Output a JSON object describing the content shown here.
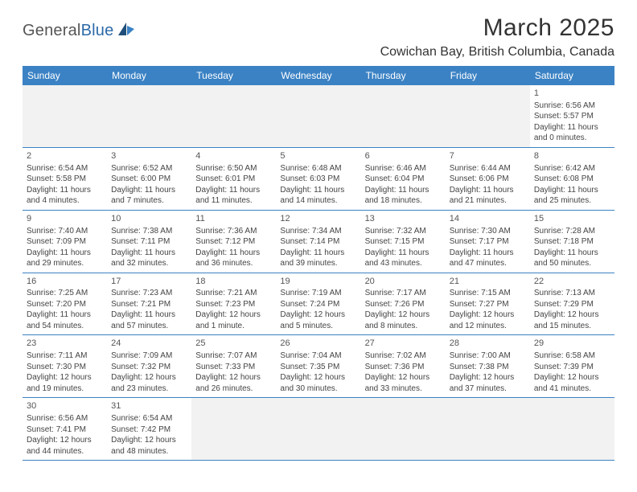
{
  "logo": {
    "general": "General",
    "blue": "Blue"
  },
  "title": "March 2025",
  "location": "Cowichan Bay, British Columbia, Canada",
  "colors": {
    "header_bg": "#3b82c4",
    "header_text": "#ffffff",
    "border": "#3b82c4",
    "empty_bg": "#f2f2f2",
    "text": "#444444",
    "logo_blue": "#2c6aa8"
  },
  "day_headers": [
    "Sunday",
    "Monday",
    "Tuesday",
    "Wednesday",
    "Thursday",
    "Friday",
    "Saturday"
  ],
  "weeks": [
    [
      {
        "empty": true
      },
      {
        "empty": true
      },
      {
        "empty": true
      },
      {
        "empty": true
      },
      {
        "empty": true
      },
      {
        "empty": true
      },
      {
        "day": "1",
        "sunrise": "Sunrise: 6:56 AM",
        "sunset": "Sunset: 5:57 PM",
        "daylight1": "Daylight: 11 hours",
        "daylight2": "and 0 minutes."
      }
    ],
    [
      {
        "day": "2",
        "sunrise": "Sunrise: 6:54 AM",
        "sunset": "Sunset: 5:58 PM",
        "daylight1": "Daylight: 11 hours",
        "daylight2": "and 4 minutes."
      },
      {
        "day": "3",
        "sunrise": "Sunrise: 6:52 AM",
        "sunset": "Sunset: 6:00 PM",
        "daylight1": "Daylight: 11 hours",
        "daylight2": "and 7 minutes."
      },
      {
        "day": "4",
        "sunrise": "Sunrise: 6:50 AM",
        "sunset": "Sunset: 6:01 PM",
        "daylight1": "Daylight: 11 hours",
        "daylight2": "and 11 minutes."
      },
      {
        "day": "5",
        "sunrise": "Sunrise: 6:48 AM",
        "sunset": "Sunset: 6:03 PM",
        "daylight1": "Daylight: 11 hours",
        "daylight2": "and 14 minutes."
      },
      {
        "day": "6",
        "sunrise": "Sunrise: 6:46 AM",
        "sunset": "Sunset: 6:04 PM",
        "daylight1": "Daylight: 11 hours",
        "daylight2": "and 18 minutes."
      },
      {
        "day": "7",
        "sunrise": "Sunrise: 6:44 AM",
        "sunset": "Sunset: 6:06 PM",
        "daylight1": "Daylight: 11 hours",
        "daylight2": "and 21 minutes."
      },
      {
        "day": "8",
        "sunrise": "Sunrise: 6:42 AM",
        "sunset": "Sunset: 6:08 PM",
        "daylight1": "Daylight: 11 hours",
        "daylight2": "and 25 minutes."
      }
    ],
    [
      {
        "day": "9",
        "sunrise": "Sunrise: 7:40 AM",
        "sunset": "Sunset: 7:09 PM",
        "daylight1": "Daylight: 11 hours",
        "daylight2": "and 29 minutes."
      },
      {
        "day": "10",
        "sunrise": "Sunrise: 7:38 AM",
        "sunset": "Sunset: 7:11 PM",
        "daylight1": "Daylight: 11 hours",
        "daylight2": "and 32 minutes."
      },
      {
        "day": "11",
        "sunrise": "Sunrise: 7:36 AM",
        "sunset": "Sunset: 7:12 PM",
        "daylight1": "Daylight: 11 hours",
        "daylight2": "and 36 minutes."
      },
      {
        "day": "12",
        "sunrise": "Sunrise: 7:34 AM",
        "sunset": "Sunset: 7:14 PM",
        "daylight1": "Daylight: 11 hours",
        "daylight2": "and 39 minutes."
      },
      {
        "day": "13",
        "sunrise": "Sunrise: 7:32 AM",
        "sunset": "Sunset: 7:15 PM",
        "daylight1": "Daylight: 11 hours",
        "daylight2": "and 43 minutes."
      },
      {
        "day": "14",
        "sunrise": "Sunrise: 7:30 AM",
        "sunset": "Sunset: 7:17 PM",
        "daylight1": "Daylight: 11 hours",
        "daylight2": "and 47 minutes."
      },
      {
        "day": "15",
        "sunrise": "Sunrise: 7:28 AM",
        "sunset": "Sunset: 7:18 PM",
        "daylight1": "Daylight: 11 hours",
        "daylight2": "and 50 minutes."
      }
    ],
    [
      {
        "day": "16",
        "sunrise": "Sunrise: 7:25 AM",
        "sunset": "Sunset: 7:20 PM",
        "daylight1": "Daylight: 11 hours",
        "daylight2": "and 54 minutes."
      },
      {
        "day": "17",
        "sunrise": "Sunrise: 7:23 AM",
        "sunset": "Sunset: 7:21 PM",
        "daylight1": "Daylight: 11 hours",
        "daylight2": "and 57 minutes."
      },
      {
        "day": "18",
        "sunrise": "Sunrise: 7:21 AM",
        "sunset": "Sunset: 7:23 PM",
        "daylight1": "Daylight: 12 hours",
        "daylight2": "and 1 minute."
      },
      {
        "day": "19",
        "sunrise": "Sunrise: 7:19 AM",
        "sunset": "Sunset: 7:24 PM",
        "daylight1": "Daylight: 12 hours",
        "daylight2": "and 5 minutes."
      },
      {
        "day": "20",
        "sunrise": "Sunrise: 7:17 AM",
        "sunset": "Sunset: 7:26 PM",
        "daylight1": "Daylight: 12 hours",
        "daylight2": "and 8 minutes."
      },
      {
        "day": "21",
        "sunrise": "Sunrise: 7:15 AM",
        "sunset": "Sunset: 7:27 PM",
        "daylight1": "Daylight: 12 hours",
        "daylight2": "and 12 minutes."
      },
      {
        "day": "22",
        "sunrise": "Sunrise: 7:13 AM",
        "sunset": "Sunset: 7:29 PM",
        "daylight1": "Daylight: 12 hours",
        "daylight2": "and 15 minutes."
      }
    ],
    [
      {
        "day": "23",
        "sunrise": "Sunrise: 7:11 AM",
        "sunset": "Sunset: 7:30 PM",
        "daylight1": "Daylight: 12 hours",
        "daylight2": "and 19 minutes."
      },
      {
        "day": "24",
        "sunrise": "Sunrise: 7:09 AM",
        "sunset": "Sunset: 7:32 PM",
        "daylight1": "Daylight: 12 hours",
        "daylight2": "and 23 minutes."
      },
      {
        "day": "25",
        "sunrise": "Sunrise: 7:07 AM",
        "sunset": "Sunset: 7:33 PM",
        "daylight1": "Daylight: 12 hours",
        "daylight2": "and 26 minutes."
      },
      {
        "day": "26",
        "sunrise": "Sunrise: 7:04 AM",
        "sunset": "Sunset: 7:35 PM",
        "daylight1": "Daylight: 12 hours",
        "daylight2": "and 30 minutes."
      },
      {
        "day": "27",
        "sunrise": "Sunrise: 7:02 AM",
        "sunset": "Sunset: 7:36 PM",
        "daylight1": "Daylight: 12 hours",
        "daylight2": "and 33 minutes."
      },
      {
        "day": "28",
        "sunrise": "Sunrise: 7:00 AM",
        "sunset": "Sunset: 7:38 PM",
        "daylight1": "Daylight: 12 hours",
        "daylight2": "and 37 minutes."
      },
      {
        "day": "29",
        "sunrise": "Sunrise: 6:58 AM",
        "sunset": "Sunset: 7:39 PM",
        "daylight1": "Daylight: 12 hours",
        "daylight2": "and 41 minutes."
      }
    ],
    [
      {
        "day": "30",
        "sunrise": "Sunrise: 6:56 AM",
        "sunset": "Sunset: 7:41 PM",
        "daylight1": "Daylight: 12 hours",
        "daylight2": "and 44 minutes."
      },
      {
        "day": "31",
        "sunrise": "Sunrise: 6:54 AM",
        "sunset": "Sunset: 7:42 PM",
        "daylight1": "Daylight: 12 hours",
        "daylight2": "and 48 minutes."
      },
      {
        "empty": true
      },
      {
        "empty": true
      },
      {
        "empty": true
      },
      {
        "empty": true
      },
      {
        "empty": true
      }
    ]
  ]
}
